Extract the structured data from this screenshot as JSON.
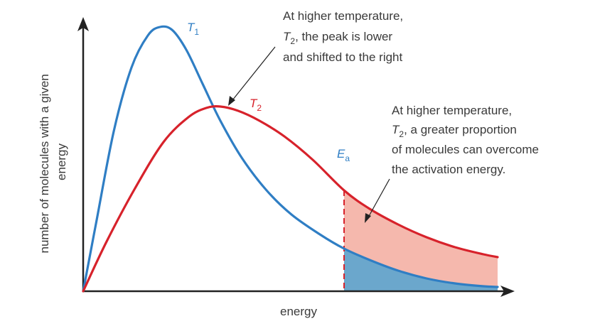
{
  "chart_data": {
    "type": "line",
    "xlabel": "energy",
    "ylabel": [
      "number of molecules with a given",
      "energy"
    ],
    "series": [
      {
        "name": "T",
        "subscript": "1",
        "color": "#2f7ec4"
      },
      {
        "name": "T",
        "subscript": "2",
        "color": "#d7222b"
      }
    ],
    "threshold": {
      "label": "E",
      "subscript": "a",
      "color": "#d7222b"
    },
    "shading": {
      "below_T1_color": "#6ba7cc",
      "between_color": "#f5b8ad"
    },
    "annotations": [
      {
        "lines": [
          {
            "text": "At higher temperature,"
          },
          {
            "italic": "T",
            "subscript": "2",
            "rest": ", the peak is lower"
          },
          {
            "text": "and shifted to the right"
          }
        ]
      },
      {
        "lines": [
          {
            "text": "At higher temperature,"
          },
          {
            "italic": "T",
            "subscript": "2",
            "rest": ", a greater proportion"
          },
          {
            "text": "of molecules can overcome"
          },
          {
            "text": "the activation energy."
          }
        ]
      }
    ]
  }
}
